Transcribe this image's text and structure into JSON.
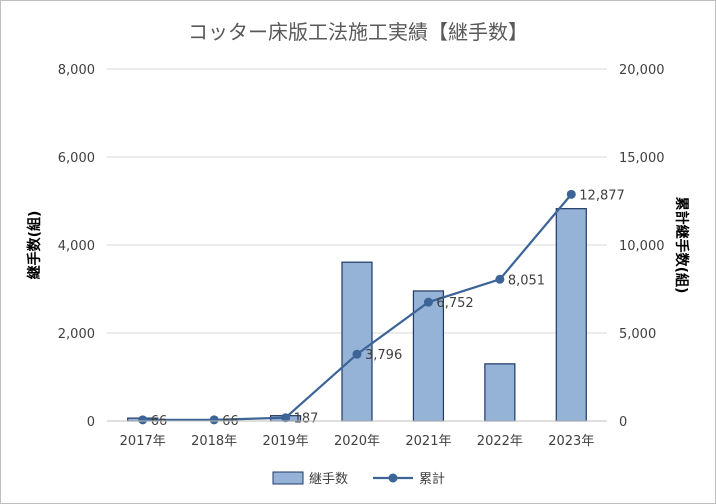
{
  "chart_data": {
    "type": "bar",
    "title": "コッター床版工法施工実績【継手数】",
    "categories": [
      "2017年",
      "2018年",
      "2019年",
      "2020年",
      "2021年",
      "2022年",
      "2023年"
    ],
    "series": [
      {
        "name": "継手数",
        "type": "bar",
        "axis": "left",
        "color": "#95b3d7",
        "border_color": "#1f3864",
        "values": [
          66,
          0,
          121,
          3609,
          2956,
          1299,
          4826
        ]
      },
      {
        "name": "累計",
        "type": "line",
        "axis": "right",
        "color": "#3c6496",
        "values": [
          66,
          66,
          187,
          3796,
          6752,
          8051,
          12877
        ],
        "data_labels": [
          "66",
          "66",
          "187",
          "3,796",
          "6,752",
          "8,051",
          "12,877"
        ]
      }
    ],
    "ylabel_left": "継手数(組)",
    "ylabel_right": "累計継手数(組)",
    "ylim_left": [
      0,
      8000
    ],
    "ylim_right": [
      0,
      20000
    ],
    "yticks_left": [
      "0",
      "2,000",
      "4,000",
      "6,000",
      "8,000"
    ],
    "yticks_right": [
      "0",
      "5,000",
      "10,000",
      "15,000",
      "20,000"
    ],
    "grid": true,
    "legend_position": "bottom"
  }
}
